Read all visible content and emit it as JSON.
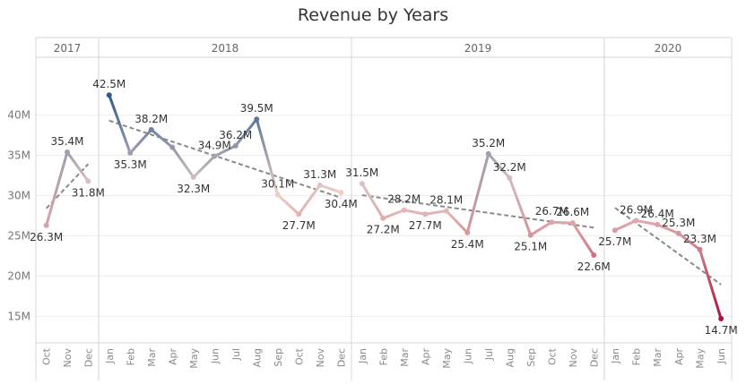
{
  "title": "Revenue by Years",
  "chart_data": {
    "type": "line",
    "title": "Revenue by Years",
    "xlabel": "",
    "ylabel": "",
    "ylim": [
      11.7,
      47.2
    ],
    "yticks": [
      15,
      20,
      25,
      30,
      35,
      40
    ],
    "ytick_labels": [
      "15M",
      "20M",
      "25M",
      "30M",
      "35M",
      "40M"
    ],
    "grid": true,
    "trend_lines": true,
    "color_scale": {
      "low": "#a6163f",
      "mid": "#f0cfc8",
      "high": "#2d5a8a"
    },
    "panes": [
      {
        "name": "2017",
        "months": [
          "Oct",
          "Nov",
          "Dec"
        ],
        "values": [
          26.3,
          35.4,
          31.8
        ],
        "labels": [
          "26.3M",
          "35.4M",
          "31.8M"
        ]
      },
      {
        "name": "2018",
        "months": [
          "Jan",
          "Feb",
          "Mar",
          "Apr",
          "May",
          "Jun",
          "Jul",
          "Aug",
          "Sep",
          "Oct",
          "Nov",
          "Dec"
        ],
        "values": [
          42.5,
          35.3,
          38.2,
          36.0,
          32.3,
          34.9,
          36.2,
          39.5,
          30.1,
          27.7,
          31.3,
          30.4
        ],
        "labels": [
          "42.5M",
          "35.3M",
          "38.2M",
          null,
          "32.3M",
          "34.9M",
          "36.2M",
          "39.5M",
          "30.1M",
          "27.7M",
          "31.3M",
          "30.4M"
        ]
      },
      {
        "name": "2019",
        "months": [
          "Jan",
          "Feb",
          "Mar",
          "Apr",
          "May",
          "Jun",
          "Jul",
          "Aug",
          "Sep",
          "Oct",
          "Nov",
          "Dec"
        ],
        "values": [
          31.5,
          27.2,
          28.2,
          27.7,
          28.1,
          25.4,
          35.2,
          32.2,
          25.1,
          26.7,
          26.6,
          22.6
        ],
        "labels": [
          "31.5M",
          "27.2M",
          "28.2M",
          "27.7M",
          "28.1M",
          "25.4M",
          "35.2M",
          "32.2M",
          "25.1M",
          "26.7M",
          "26.6M",
          "22.6M"
        ]
      },
      {
        "name": "2020",
        "months": [
          "Jan",
          "Feb",
          "Mar",
          "Apr",
          "May",
          "Jun"
        ],
        "values": [
          25.7,
          26.9,
          26.4,
          25.3,
          23.3,
          14.7
        ],
        "labels": [
          "25.7M",
          "26.9M",
          "26.4M",
          "25.3M",
          "23.3M",
          "14.7M"
        ]
      }
    ]
  }
}
